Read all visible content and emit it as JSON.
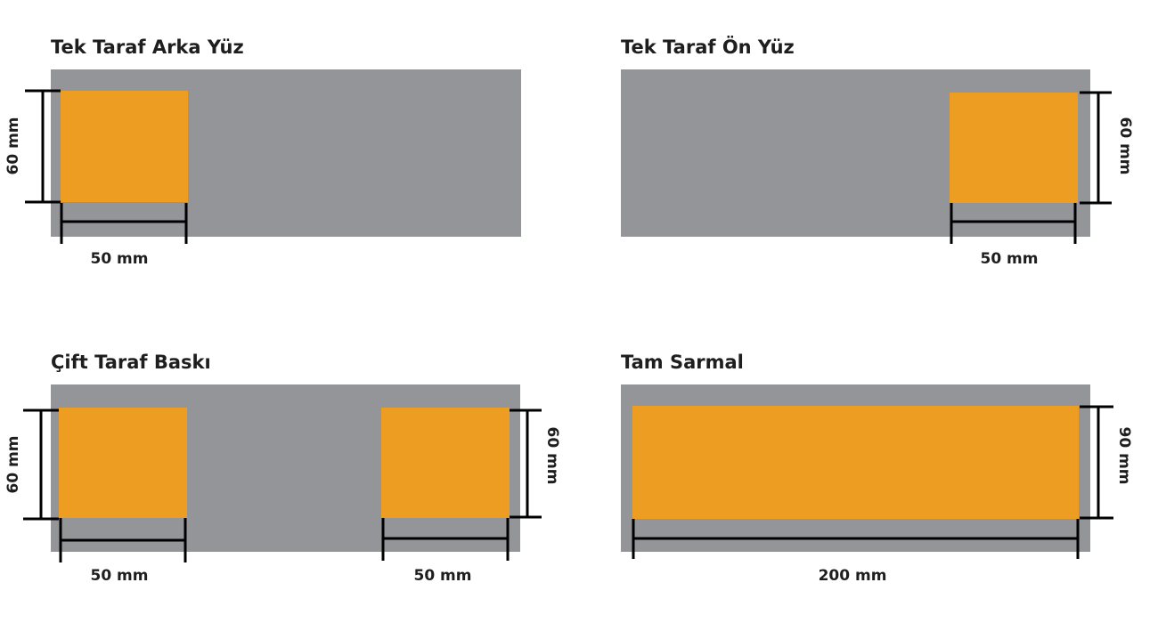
{
  "colors": {
    "substrate": "#939598",
    "print_area": "#EE9D23",
    "dimension_line": "#000000"
  },
  "panels": [
    {
      "title": "Tek Taraf Arka Yüz",
      "height_label": "60 mm",
      "width_label": "50 mm"
    },
    {
      "title": "Tek Taraf Ön Yüz",
      "height_label": "60 mm",
      "width_label": "50 mm"
    },
    {
      "title": "Çift Taraf Baskı",
      "height_label": "60 mm",
      "width_label": "50 mm",
      "height_label_2": "60 mm",
      "width_label_2": "50 mm"
    },
    {
      "title": "Tam Sarmal",
      "height_label": "90 mm",
      "width_label": "200 mm"
    }
  ]
}
